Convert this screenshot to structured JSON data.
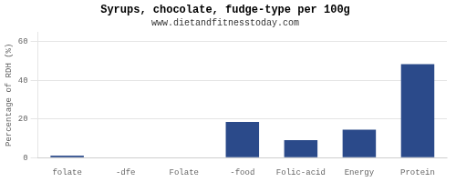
{
  "chart_data": {
    "type": "bar",
    "title": "Syrups, chocolate, fudge-type per 100g",
    "subtitle": "www.dietandfitnesstoday.com",
    "categories": [
      "folate",
      "-dfe",
      "Folate",
      "-food",
      "Folic-acid",
      "Energy",
      "Protein"
    ],
    "values": [
      1.0,
      0.0,
      0.0,
      18.5,
      9.0,
      14.5,
      48.5
    ],
    "color": "#2b4a8a",
    "ylabel": "Percentage of RDH (%)",
    "ylim": [
      0,
      65
    ],
    "yticks": [
      0,
      20,
      40,
      60
    ],
    "grid": true
  }
}
